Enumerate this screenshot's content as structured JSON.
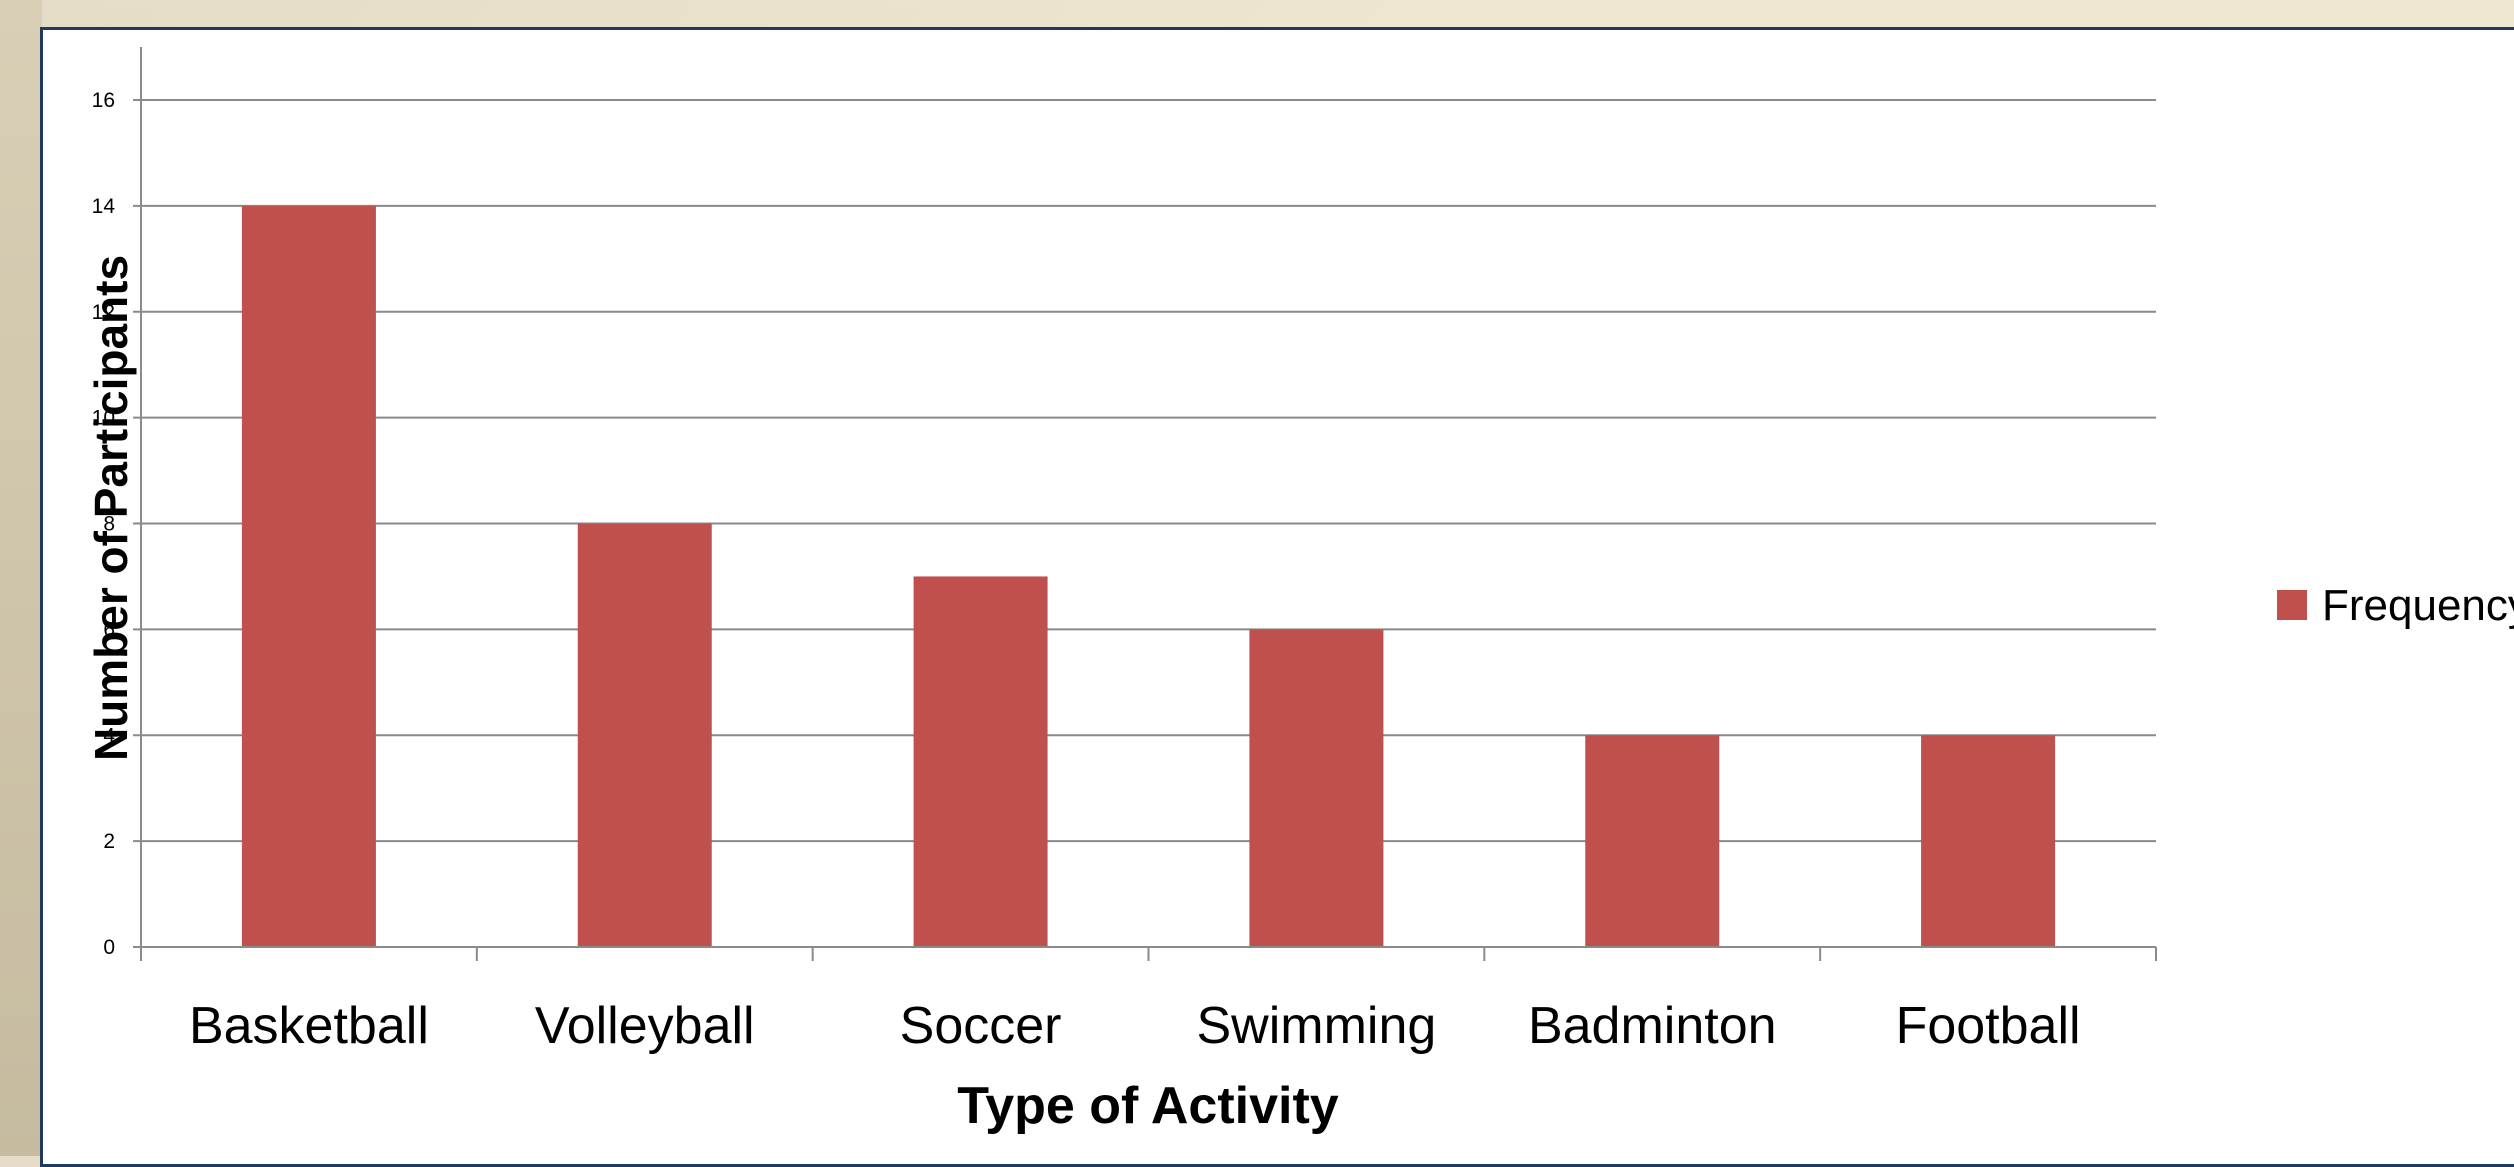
{
  "chart_data": {
    "type": "bar",
    "categories": [
      "Basketball",
      "Volleyball",
      "Soccer",
      "Swimming",
      "Badminton",
      "Football"
    ],
    "series": [
      {
        "name": "Frequency",
        "values": [
          14,
          8,
          7,
          6,
          4,
          4
        ],
        "color": "#c0504d"
      }
    ],
    "xlabel": "Type of Activity",
    "ylabel": "Number of Participants",
    "ylim": [
      0,
      16
    ],
    "yticks": [
      "0",
      "2",
      "4",
      "6",
      "8",
      "10",
      "12",
      "14",
      "16"
    ],
    "grid": true,
    "legend": "right"
  }
}
